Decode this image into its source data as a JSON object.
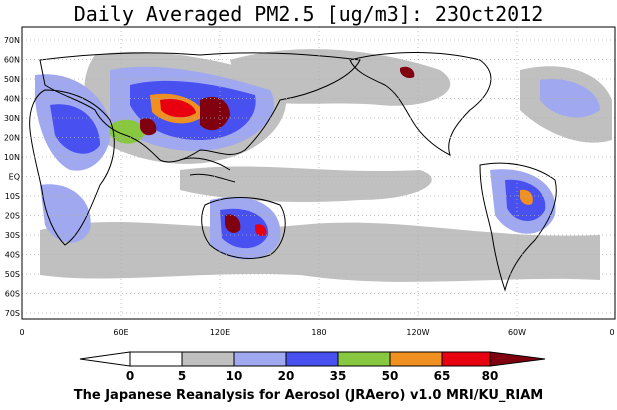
{
  "title": "Daily Averaged PM2.5 [ug/m3]: 23Oct2012",
  "footer": "The Japanese Reanalysis for Aerosol (JRAero) v1.0 MRI/KU_RIAM",
  "lat_labels": [
    "70N",
    "60N",
    "50N",
    "40N",
    "30N",
    "20N",
    "10N",
    "EQ",
    "10S",
    "20S",
    "30S",
    "40S",
    "50S",
    "60S",
    "70S"
  ],
  "lon_labels": [
    "0",
    "60E",
    "120E",
    "180",
    "120W",
    "60W",
    "0"
  ],
  "colorbar": {
    "levels": [
      "0",
      "5",
      "10",
      "20",
      "35",
      "50",
      "65",
      "80"
    ],
    "colors": [
      "#ffffff",
      "#c0c0c0",
      "#a0a8f0",
      "#4850f0",
      "#88c840",
      "#f09020",
      "#e80010",
      "#800010"
    ]
  },
  "map_colors": {
    "land_outline": "#000000",
    "grid": "#b0b0b0",
    "light": "#c0c0c0",
    "lavender": "#a0a8f0",
    "blue": "#4850f0",
    "green": "#88c840",
    "orange": "#f09020",
    "red": "#e80010",
    "dark": "#800010"
  }
}
